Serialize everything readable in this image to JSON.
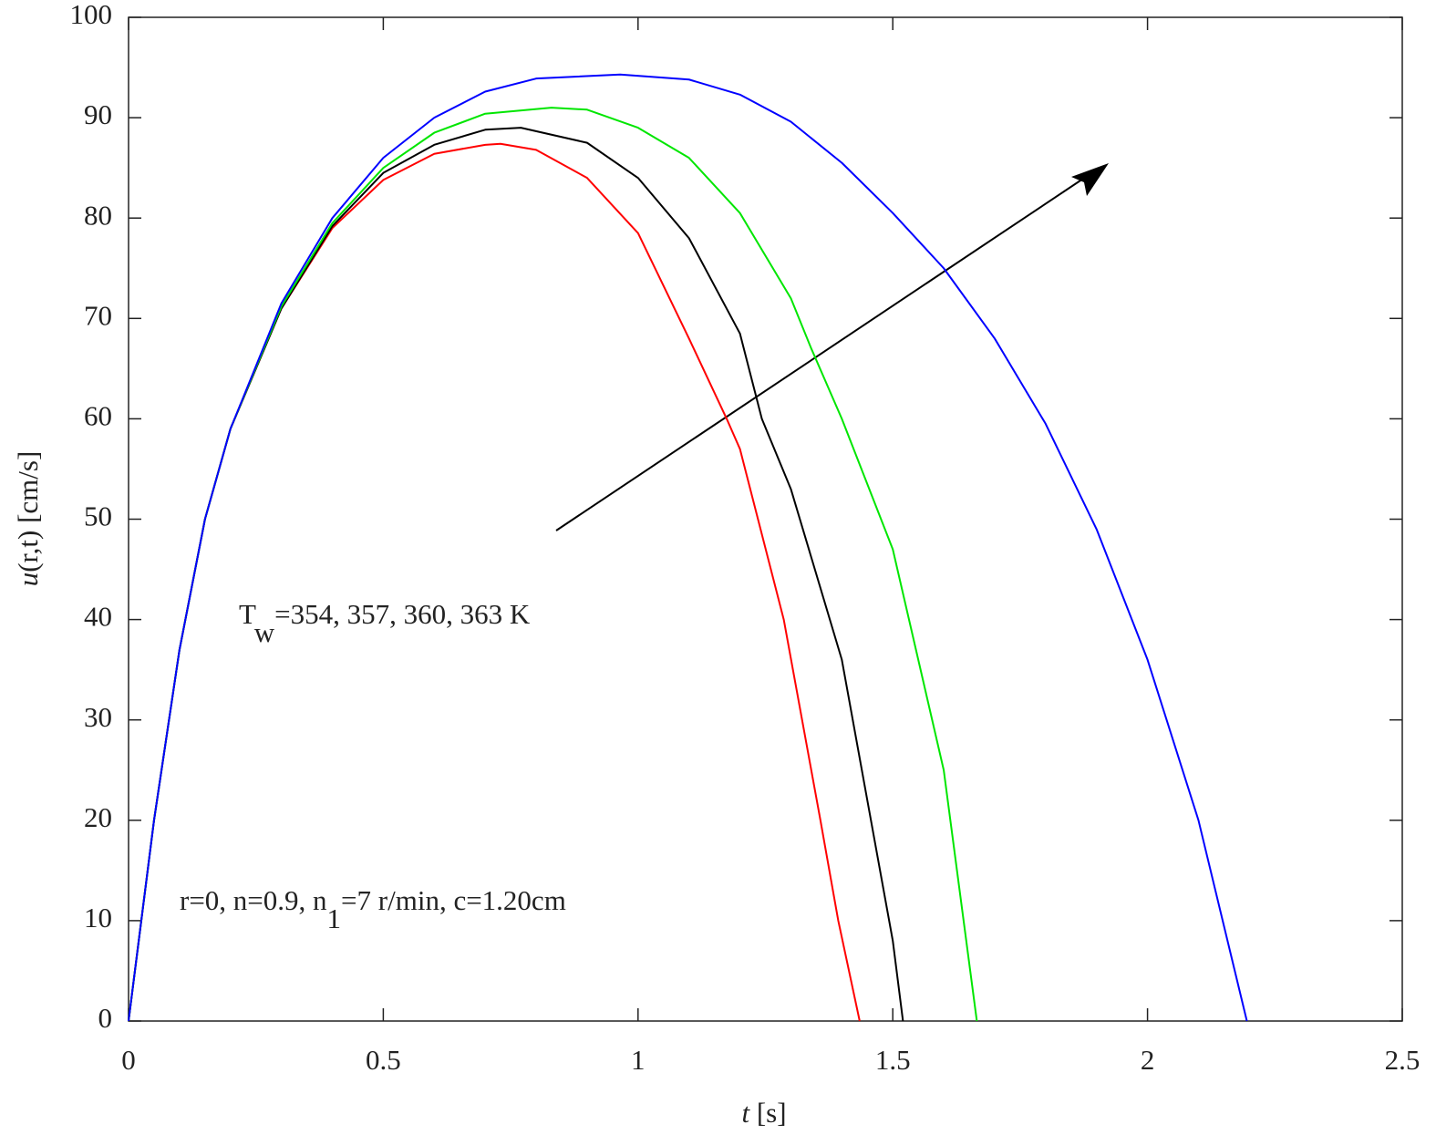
{
  "chart_data": {
    "type": "line",
    "xlabel": {
      "italic": "t",
      "text": " [s]"
    },
    "ylabel": {
      "italic": "u",
      "text": "(r,t) [cm/s]"
    },
    "xlim": [
      0,
      2.5
    ],
    "xticks": [
      0,
      0.5,
      1,
      1.5,
      2,
      2.5
    ],
    "ylim": [
      0,
      100
    ],
    "yticks": [
      0,
      10,
      20,
      30,
      40,
      50,
      60,
      70,
      80,
      90,
      100
    ],
    "annotations": [
      {
        "base": "T",
        "subscript": "w",
        "text": "=354, 357, 360, 363 K"
      },
      {
        "base": "r=0, n=0.9, n",
        "subscript": "1",
        "text": "=7 r/min, c=1.20cm"
      }
    ],
    "series": [
      {
        "color": "#ff0000",
        "x": [
          0,
          0.05,
          0.1,
          0.15,
          0.2,
          0.3,
          0.4,
          0.5,
          0.6,
          0.7,
          0.73,
          0.8,
          0.9,
          1.0,
          1.1,
          1.174,
          1.2,
          1.286,
          1.358,
          1.393,
          1.435
        ],
        "values": [
          0,
          20,
          37,
          50,
          59,
          71,
          79,
          83.8,
          86.4,
          87.3,
          87.4,
          86.8,
          84,
          78.5,
          68,
          60,
          57,
          40,
          20,
          10,
          0
        ]
      },
      {
        "color": "#000000",
        "x": [
          0,
          0.05,
          0.1,
          0.15,
          0.2,
          0.3,
          0.4,
          0.5,
          0.6,
          0.7,
          0.77,
          0.9,
          1.0,
          1.1,
          1.2,
          1.243,
          1.3,
          1.4,
          1.5,
          1.52
        ],
        "values": [
          0,
          20,
          37,
          50,
          59,
          71,
          79.2,
          84.5,
          87.3,
          88.8,
          89,
          87.5,
          84,
          78,
          68.5,
          60,
          53,
          36,
          8,
          0
        ]
      },
      {
        "color": "#00e600",
        "x": [
          0,
          0.05,
          0.1,
          0.15,
          0.2,
          0.3,
          0.4,
          0.5,
          0.6,
          0.7,
          0.83,
          0.9,
          1.0,
          1.1,
          1.2,
          1.3,
          1.34,
          1.4,
          1.5,
          1.6,
          1.665
        ],
        "values": [
          0,
          20,
          37,
          50,
          59,
          71.2,
          79.5,
          85,
          88.5,
          90.4,
          91,
          90.8,
          89,
          86,
          80.5,
          72,
          67,
          60,
          47,
          25,
          0
        ]
      },
      {
        "color": "#0000ff",
        "x": [
          0,
          0.05,
          0.1,
          0.15,
          0.2,
          0.3,
          0.4,
          0.5,
          0.6,
          0.7,
          0.8,
          0.965,
          1.1,
          1.2,
          1.3,
          1.4,
          1.5,
          1.6,
          1.7,
          1.8,
          1.9,
          2.0,
          2.1,
          2.195
        ],
        "values": [
          0,
          20,
          37,
          50,
          59,
          71.5,
          80,
          86,
          90,
          92.6,
          93.9,
          94.3,
          93.8,
          92.3,
          89.6,
          85.5,
          80.5,
          75,
          68,
          59.5,
          49,
          36,
          20,
          0
        ]
      }
    ]
  }
}
